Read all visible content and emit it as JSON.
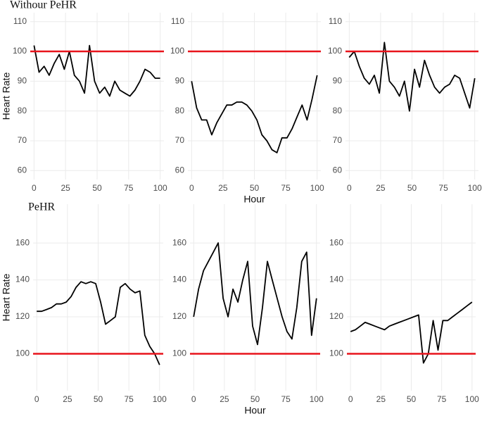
{
  "chart_data": [
    {
      "type": "line",
      "title": "Withour PeHR",
      "y_label": "Heart Rate",
      "x": [
        0,
        4,
        8,
        12,
        16,
        20,
        24,
        28,
        32,
        36,
        40,
        44,
        48,
        52,
        56,
        60,
        64,
        68,
        72,
        76,
        80,
        84,
        88,
        92,
        96,
        100
      ],
      "values": [
        102,
        93,
        95,
        92,
        96,
        99,
        94,
        100,
        92,
        90,
        86,
        102,
        90,
        86,
        88,
        85,
        90,
        87,
        86,
        85,
        87,
        90,
        94,
        93,
        91,
        91
      ],
      "color": "#000000",
      "xlim": [
        -3,
        103
      ],
      "ylim": [
        57,
        113
      ],
      "xticks": [
        0,
        25,
        50,
        75,
        100
      ],
      "yticks": [
        60,
        70,
        80,
        90,
        100,
        110
      ],
      "hline": 100,
      "hline_color": "#e8141c",
      "grid": true
    },
    {
      "type": "line",
      "x_label": "Hour",
      "x": [
        0,
        4,
        8,
        12,
        16,
        20,
        24,
        28,
        32,
        36,
        40,
        44,
        48,
        52,
        56,
        60,
        64,
        68,
        72,
        76,
        80,
        84,
        88,
        92,
        96,
        100
      ],
      "values": [
        90,
        81,
        77,
        77,
        72,
        76,
        79,
        82,
        82,
        83,
        83,
        82,
        80,
        77,
        72,
        70,
        67,
        66,
        71,
        71,
        74,
        78,
        82,
        77,
        84,
        92
      ],
      "color": "#000000",
      "xlim": [
        -3,
        103
      ],
      "ylim": [
        57,
        113
      ],
      "xticks": [
        0,
        25,
        50,
        75,
        100
      ],
      "yticks": [
        60,
        70,
        80,
        90,
        100,
        110
      ],
      "hline": 100,
      "hline_color": "#e8141c",
      "grid": true
    },
    {
      "type": "line",
      "x": [
        0,
        4,
        8,
        12,
        16,
        20,
        24,
        28,
        32,
        36,
        40,
        44,
        48,
        52,
        56,
        60,
        64,
        68,
        72,
        76,
        80,
        84,
        88,
        92,
        96,
        100
      ],
      "values": [
        98,
        100,
        95,
        91,
        89,
        92,
        86,
        103,
        90,
        88,
        85,
        90,
        80,
        94,
        88,
        97,
        92,
        88,
        86,
        88,
        89,
        92,
        91,
        86,
        81,
        91
      ],
      "color": "#000000",
      "xlim": [
        -3,
        103
      ],
      "ylim": [
        57,
        113
      ],
      "xticks": [
        0,
        25,
        50,
        75,
        100
      ],
      "yticks": [
        60,
        70,
        80,
        90,
        100,
        110
      ],
      "hline": 100,
      "hline_color": "#e8141c",
      "grid": true
    },
    {
      "type": "line",
      "title": "PeHR",
      "y_label": "Heart Rate",
      "x": [
        0,
        4,
        8,
        12,
        16,
        20,
        24,
        28,
        32,
        36,
        40,
        44,
        48,
        52,
        56,
        60,
        64,
        68,
        72,
        76,
        80,
        84,
        88,
        92,
        96,
        100
      ],
      "values": [
        123,
        123,
        124,
        125,
        127,
        127,
        128,
        131,
        136,
        139,
        138,
        139,
        138,
        128,
        116,
        118,
        120,
        136,
        138,
        135,
        133,
        134,
        110,
        104,
        100,
        94
      ],
      "color": "#000000",
      "xlim": [
        -3,
        103
      ],
      "ylim": [
        80,
        181
      ],
      "xticks": [
        0,
        25,
        50,
        75,
        100
      ],
      "yticks": [
        100,
        120,
        140,
        160
      ],
      "hline": 100,
      "hline_color": "#e8141c",
      "grid": true
    },
    {
      "type": "line",
      "x_label": "Hour",
      "x": [
        0,
        4,
        8,
        12,
        16,
        20,
        24,
        28,
        32,
        36,
        40,
        44,
        48,
        52,
        56,
        60,
        64,
        68,
        72,
        76,
        80,
        84,
        88,
        92,
        96,
        100
      ],
      "values": [
        120,
        135,
        145,
        150,
        155,
        160,
        130,
        120,
        135,
        128,
        140,
        150,
        115,
        105,
        125,
        150,
        140,
        130,
        120,
        112,
        108,
        125,
        150,
        155,
        110,
        130
      ],
      "color": "#000000",
      "xlim": [
        -3,
        103
      ],
      "ylim": [
        80,
        181
      ],
      "xticks": [
        0,
        25,
        50,
        75,
        100
      ],
      "yticks": [
        100,
        120,
        140,
        160
      ],
      "hline": 100,
      "hline_color": "#e8141c",
      "grid": true
    },
    {
      "type": "line",
      "x": [
        0,
        4,
        8,
        12,
        16,
        20,
        24,
        28,
        32,
        36,
        40,
        44,
        48,
        52,
        56,
        60,
        64,
        68,
        72,
        76,
        80,
        84,
        88,
        92,
        96,
        100
      ],
      "values": [
        112,
        113,
        115,
        117,
        116,
        115,
        114,
        113,
        115,
        116,
        117,
        118,
        119,
        120,
        121,
        95,
        100,
        118,
        102,
        118,
        118,
        120,
        122,
        124,
        126,
        128
      ],
      "color": "#000000",
      "xlim": [
        -3,
        103
      ],
      "ylim": [
        80,
        181
      ],
      "xticks": [
        0,
        25,
        50,
        75,
        100
      ],
      "yticks": [
        100,
        120,
        140,
        160
      ],
      "hline": 100,
      "hline_color": "#e8141c",
      "grid": true
    }
  ]
}
